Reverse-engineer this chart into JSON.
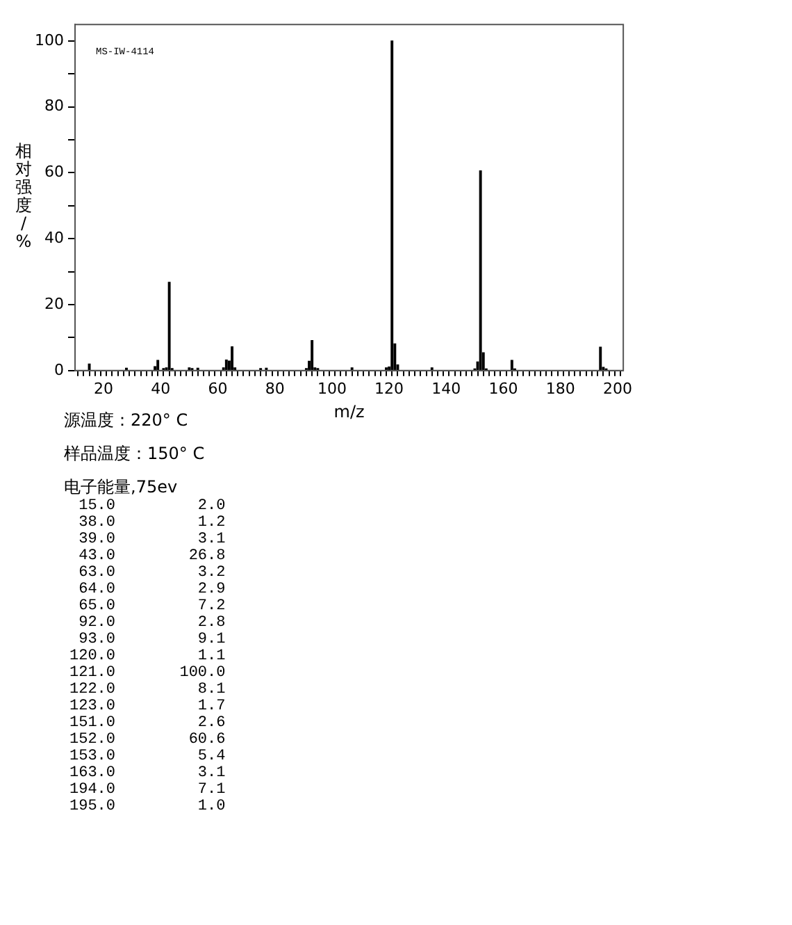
{
  "chart_data": {
    "type": "bar",
    "xlabel": "m/z",
    "ylabel": "相对强度/%",
    "x": [
      15,
      28,
      38,
      39,
      41,
      42,
      43,
      44,
      50,
      51,
      53,
      62,
      63,
      64,
      65,
      66,
      75,
      77,
      91,
      92,
      93,
      94,
      95,
      107,
      119,
      120,
      121,
      122,
      123,
      135,
      150,
      151,
      152,
      153,
      154,
      163,
      164,
      194,
      195,
      196
    ],
    "values": [
      2.0,
      0.7,
      1.2,
      3.1,
      0.6,
      0.8,
      26.8,
      0.6,
      0.8,
      0.6,
      0.7,
      0.8,
      3.2,
      2.9,
      7.2,
      0.8,
      0.6,
      0.7,
      0.6,
      2.8,
      9.1,
      0.8,
      0.6,
      0.8,
      0.8,
      1.1,
      100.0,
      8.1,
      1.7,
      0.8,
      0.5,
      2.6,
      60.6,
      5.4,
      0.5,
      3.1,
      0.5,
      7.1,
      1.0,
      0.5
    ],
    "color": "#000000",
    "xlim": [
      10,
      202
    ],
    "xticks": [
      {
        "value": 12,
        "label": null
      },
      {
        "value": 14,
        "label": null
      },
      {
        "value": 16,
        "label": null
      },
      {
        "value": 18,
        "label": null
      },
      20,
      {
        "value": 22,
        "label": null
      },
      {
        "value": 24,
        "label": null
      },
      {
        "value": 26,
        "label": null
      },
      {
        "value": 28,
        "label": null
      },
      {
        "value": 30,
        "label": null
      },
      {
        "value": 32,
        "label": null
      },
      {
        "value": 34,
        "label": null
      },
      {
        "value": 36,
        "label": null
      },
      {
        "value": 38,
        "label": null
      },
      40,
      {
        "value": 42,
        "label": null
      },
      {
        "value": 44,
        "label": null
      },
      {
        "value": 46,
        "label": null
      },
      {
        "value": 48,
        "label": null
      },
      {
        "value": 50,
        "label": null
      },
      {
        "value": 52,
        "label": null
      },
      {
        "value": 54,
        "label": null
      },
      {
        "value": 56,
        "label": null
      },
      {
        "value": 58,
        "label": null
      },
      60,
      {
        "value": 62,
        "label": null
      },
      {
        "value": 64,
        "label": null
      },
      {
        "value": 66,
        "label": null
      },
      {
        "value": 68,
        "label": null
      },
      {
        "value": 70,
        "label": null
      },
      {
        "value": 72,
        "label": null
      },
      {
        "value": 74,
        "label": null
      },
      {
        "value": 76,
        "label": null
      },
      {
        "value": 78,
        "label": null
      },
      80,
      {
        "value": 82,
        "label": null
      },
      {
        "value": 84,
        "label": null
      },
      {
        "value": 86,
        "label": null
      },
      {
        "value": 88,
        "label": null
      },
      {
        "value": 90,
        "label": null
      },
      {
        "value": 92,
        "label": null
      },
      {
        "value": 94,
        "label": null
      },
      {
        "value": 96,
        "label": null
      },
      {
        "value": 98,
        "label": null
      },
      100,
      {
        "value": 102,
        "label": null
      },
      {
        "value": 104,
        "label": null
      },
      {
        "value": 106,
        "label": null
      },
      {
        "value": 108,
        "label": null
      },
      {
        "value": 110,
        "label": null
      },
      {
        "value": 112,
        "label": null
      },
      {
        "value": 114,
        "label": null
      },
      {
        "value": 116,
        "label": null
      },
      {
        "value": 118,
        "label": null
      },
      120,
      {
        "value": 122,
        "label": null
      },
      {
        "value": 124,
        "label": null
      },
      {
        "value": 126,
        "label": null
      },
      {
        "value": 128,
        "label": null
      },
      {
        "value": 130,
        "label": null
      },
      {
        "value": 132,
        "label": null
      },
      {
        "value": 134,
        "label": null
      },
      {
        "value": 136,
        "label": null
      },
      {
        "value": 138,
        "label": null
      },
      140,
      {
        "value": 142,
        "label": null
      },
      {
        "value": 144,
        "label": null
      },
      {
        "value": 146,
        "label": null
      },
      {
        "value": 148,
        "label": null
      },
      {
        "value": 150,
        "label": null
      },
      {
        "value": 152,
        "label": null
      },
      {
        "value": 154,
        "label": null
      },
      {
        "value": 156,
        "label": null
      },
      {
        "value": 158,
        "label": null
      },
      160,
      {
        "value": 162,
        "label": null
      },
      {
        "value": 164,
        "label": null
      },
      {
        "value": 166,
        "label": null
      },
      {
        "value": 168,
        "label": null
      },
      {
        "value": 170,
        "label": null
      },
      {
        "value": 172,
        "label": null
      },
      {
        "value": 174,
        "label": null
      },
      {
        "value": 176,
        "label": null
      },
      {
        "value": 178,
        "label": null
      },
      180,
      {
        "value": 182,
        "label": null
      },
      {
        "value": 184,
        "label": null
      },
      {
        "value": 186,
        "label": null
      },
      {
        "value": 188,
        "label": null
      },
      {
        "value": 190,
        "label": null
      },
      {
        "value": 192,
        "label": null
      },
      {
        "value": 194,
        "label": null
      },
      {
        "value": 196,
        "label": null
      },
      {
        "value": 198,
        "label": null
      },
      200
    ],
    "ylim": [
      0,
      105
    ],
    "yticks": [
      0,
      {
        "value": 10,
        "label": null
      },
      20,
      {
        "value": 30,
        "label": null
      },
      40,
      {
        "value": 50,
        "label": null
      },
      60,
      {
        "value": 70,
        "label": null
      },
      80,
      {
        "value": 90,
        "label": null
      },
      100
    ],
    "grid": false,
    "annotations": [
      "MS-IW-4114",
      "源温度：220° C",
      "样品温度：150° C",
      "电子能量,75ev",
      " 15.0         2.0",
      " 38.0         1.2",
      " 39.0         3.1",
      " 43.0        26.8",
      " 63.0         3.2",
      " 64.0         2.9",
      " 65.0         7.2",
      " 92.0         2.8",
      " 93.0         9.1",
      "120.0         1.1",
      "121.0       100.0",
      "122.0         8.1",
      "123.0         1.7",
      "151.0         2.6",
      "152.0        60.6",
      "153.0         5.4",
      "163.0         3.1",
      "194.0         7.1",
      "195.0         1.0"
    ]
  }
}
